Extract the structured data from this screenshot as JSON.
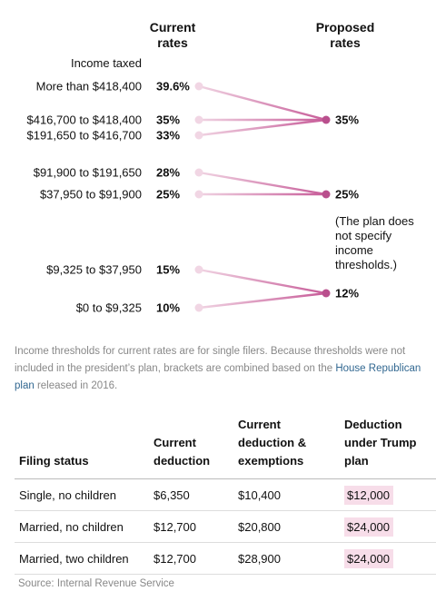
{
  "headers": {
    "current": [
      "Current",
      "rates"
    ],
    "proposed": [
      "Proposed",
      "rates"
    ],
    "income_taxed": "Income taxed"
  },
  "chart_data": {
    "type": "slope",
    "left_label": "Current rates",
    "right_label": "Proposed rates",
    "brackets": [
      {
        "income": "More than $418,400",
        "current": "39.6%",
        "current_value": 39.6,
        "proposed_value": 35
      },
      {
        "income": "$416,700 to $418,400",
        "current": "35%",
        "current_value": 35,
        "proposed_value": 35
      },
      {
        "income": "$191,650 to $416,700",
        "current": "33%",
        "current_value": 33,
        "proposed_value": 35
      },
      {
        "income": "$91,900 to $191,650",
        "current": "28%",
        "current_value": 28,
        "proposed_value": 25
      },
      {
        "income": "$37,950 to $91,900",
        "current": "25%",
        "current_value": 25,
        "proposed_value": 25
      },
      {
        "income": "$9,325 to $37,950",
        "current": "15%",
        "current_value": 15,
        "proposed_value": 12
      },
      {
        "income": "$0 to $9,325",
        "current": "10%",
        "current_value": 10,
        "proposed_value": 12
      }
    ],
    "proposed": [
      {
        "value": 35,
        "label": "35%"
      },
      {
        "value": 25,
        "label": "25%"
      },
      {
        "value": 12,
        "label": "12%"
      }
    ],
    "annotation": [
      "(The plan does",
      "not specify",
      "income",
      "thresholds.)"
    ],
    "colors": {
      "line_light": "#f0d3e2",
      "line_strong": "#c75b98",
      "dot_left": "#f1d6e4",
      "dot_right": "#b94f8d"
    }
  },
  "note": {
    "text": "Income thresholds for current rates are for single filers. Because thresholds were not included in the president’s plan, brackets are combined based on the ",
    "link": "House Republican plan",
    "tail": " released in 2016."
  },
  "table": {
    "headers": [
      [
        "Filing status"
      ],
      [
        "Current",
        "deduction"
      ],
      [
        "Current",
        "deduction &",
        "exemptions"
      ],
      [
        "Deduction",
        "under Trump",
        "plan"
      ]
    ],
    "rows": [
      {
        "status": "Single, no children",
        "deduction": "$6,350",
        "exemptions": "$10,400",
        "trump": "$12,000"
      },
      {
        "status": "Married, no children",
        "deduction": "$12,700",
        "exemptions": "$20,800",
        "trump": "$24,000"
      },
      {
        "status": "Married, two children",
        "deduction": "$12,700",
        "exemptions": "$28,900",
        "trump": "$24,000"
      }
    ]
  },
  "source": "Source: Internal Revenue Service"
}
